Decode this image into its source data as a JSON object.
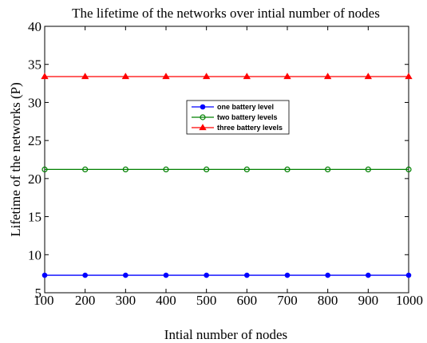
{
  "chart_data": {
    "type": "line",
    "title": "The lifetime of the networks over intial number of nodes",
    "xlabel": "Intial number of  nodes",
    "ylabel": "Lifetime of the networks (P)",
    "x": [
      100,
      200,
      300,
      400,
      500,
      600,
      700,
      800,
      900,
      1000
    ],
    "xlim": [
      100,
      1000
    ],
    "ylim": [
      5,
      40
    ],
    "xticks": [
      100,
      200,
      300,
      400,
      500,
      600,
      700,
      800,
      900,
      1000
    ],
    "yticks": [
      5,
      10,
      15,
      20,
      25,
      30,
      35,
      40
    ],
    "grid": false,
    "legend_placement": "center",
    "series": [
      {
        "name": "one battery level",
        "color": "#0000ff",
        "marker": "circle-filled",
        "values": [
          7.3,
          7.3,
          7.3,
          7.3,
          7.3,
          7.3,
          7.3,
          7.3,
          7.3,
          7.3
        ]
      },
      {
        "name": "two battery levels",
        "color": "#008000",
        "marker": "circle-open",
        "values": [
          21.2,
          21.2,
          21.2,
          21.2,
          21.2,
          21.2,
          21.2,
          21.2,
          21.2,
          21.2
        ]
      },
      {
        "name": "three battery levels",
        "color": "#ff0000",
        "marker": "triangle",
        "values": [
          33.4,
          33.4,
          33.4,
          33.4,
          33.4,
          33.4,
          33.4,
          33.4,
          33.4,
          33.4
        ]
      }
    ]
  }
}
